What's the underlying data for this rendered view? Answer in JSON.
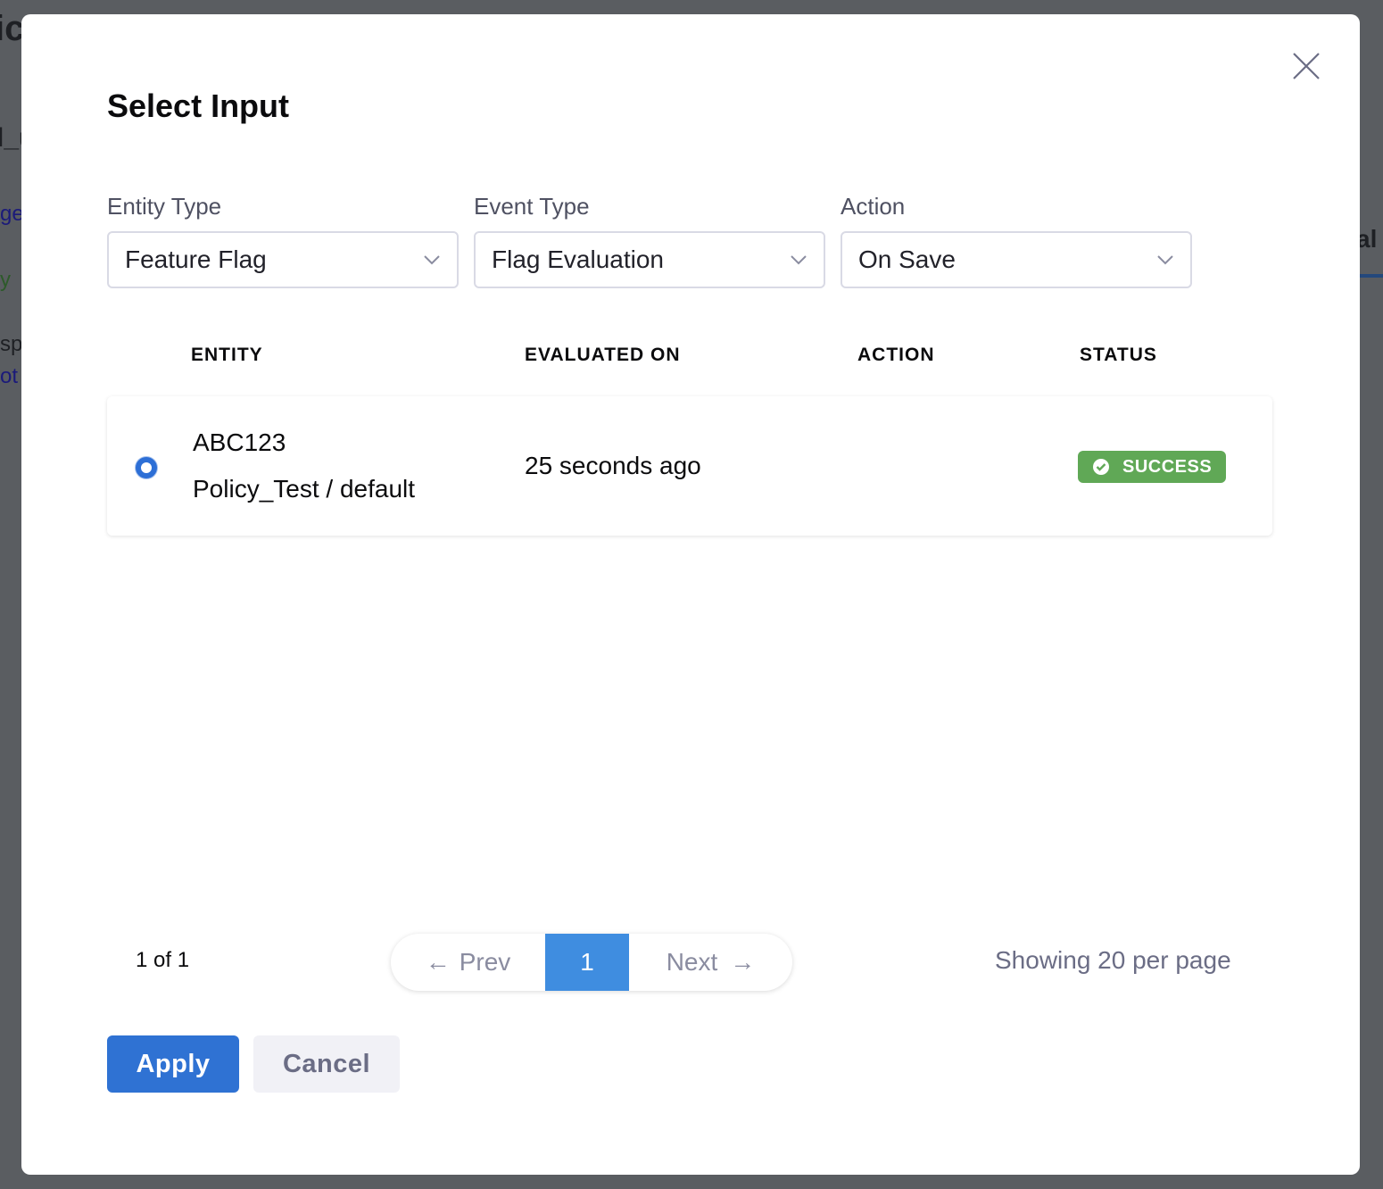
{
  "modal": {
    "title": "Select Input"
  },
  "filters": [
    {
      "label": "Entity Type",
      "value": "Feature Flag"
    },
    {
      "label": "Event Type",
      "value": "Flag Evaluation"
    },
    {
      "label": "Action",
      "value": "On Save"
    }
  ],
  "table": {
    "headers": [
      "ENTITY",
      "EVALUATED ON",
      "ACTION",
      "STATUS"
    ],
    "rows": [
      {
        "selected": true,
        "entity": "ABC123",
        "entity_sub": "Policy_Test / default",
        "evaluated_on": "25 seconds ago",
        "action": "",
        "status": "SUCCESS"
      }
    ]
  },
  "pagination": {
    "summary": "1 of 1",
    "prev": "Prev",
    "current": "1",
    "next": "Next",
    "per_page": "Showing 20 per page"
  },
  "buttons": {
    "apply": "Apply",
    "cancel": "Cancel"
  },
  "colors": {
    "primary": "#2f72d3",
    "success": "#60a856",
    "page_active": "#3f8de0"
  }
}
